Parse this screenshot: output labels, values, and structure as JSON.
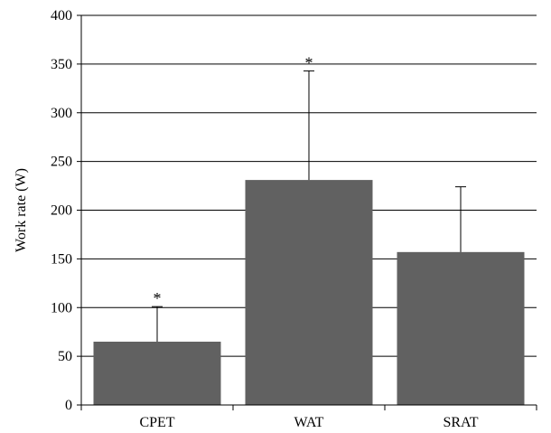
{
  "chart_data": {
    "type": "bar",
    "categories": [
      "CPET",
      "WAT",
      "SRAT"
    ],
    "values": [
      65,
      231,
      157
    ],
    "error_upper": [
      101,
      343,
      224
    ],
    "significance": [
      "*",
      "*",
      ""
    ],
    "ylabel": "Work rate (W)",
    "xlabel": "",
    "ylim": [
      0,
      400
    ],
    "yticks": [
      0,
      50,
      100,
      150,
      200,
      250,
      300,
      350,
      400
    ],
    "grid": true,
    "bar_color": "#616161",
    "legend": "none"
  }
}
